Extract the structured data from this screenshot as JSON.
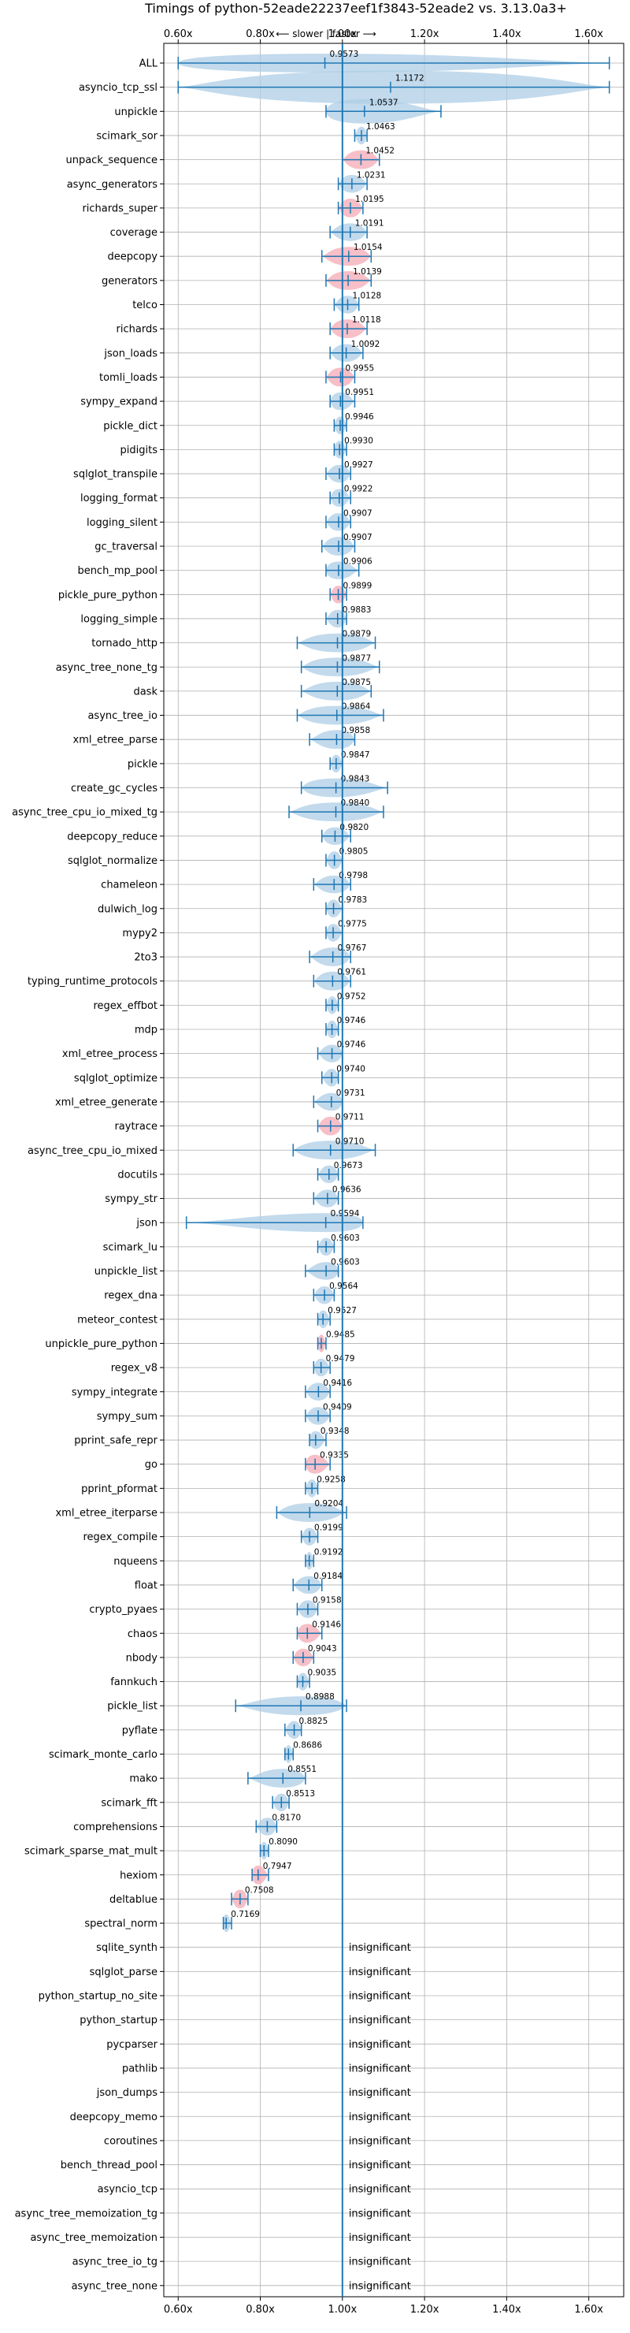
{
  "chart_data": {
    "type": "violin",
    "title": "Timings of python-52eade22237eef1f3843-52eade2 vs. 3.13.0a3+",
    "direction_label": "⟵ slower | faster ⟶",
    "xlim": [
      0.565,
      1.685
    ],
    "xticks": [
      "0.60x",
      "0.80x",
      "1.00x",
      "1.20x",
      "1.40x",
      "1.60x"
    ],
    "xtick_values": [
      0.6,
      0.8,
      1.0,
      1.2,
      1.4,
      1.6
    ],
    "reference_line": 1.0,
    "grid": true,
    "colors": {
      "violin_fill": "#aecde6",
      "whisker": "#1f77b4",
      "highlight": "#f4a9b4",
      "reference": "#1f77b4",
      "grid": "#b0b0b0"
    },
    "benchmarks": [
      {
        "name": "ALL",
        "median": 0.9573,
        "min": 0.6,
        "max": 1.65,
        "spread": 0.35,
        "insignificant": false,
        "highlight": false
      },
      {
        "name": "asyncio_tcp_ssl",
        "median": 1.1172,
        "min": 0.6,
        "max": 1.65,
        "spread": 1.0,
        "insignificant": false,
        "highlight": false
      },
      {
        "name": "unpickle",
        "median": 1.0537,
        "min": 0.96,
        "max": 1.24,
        "spread": 0.6,
        "insignificant": false,
        "highlight": false
      },
      {
        "name": "scimark_sor",
        "median": 1.0463,
        "min": 1.03,
        "max": 1.06,
        "spread": 0.3,
        "insignificant": false,
        "highlight": false
      },
      {
        "name": "unpack_sequence",
        "median": 1.0452,
        "min": 1.0,
        "max": 1.09,
        "spread": 0.35,
        "insignificant": false,
        "highlight": true
      },
      {
        "name": "async_generators",
        "median": 1.0231,
        "min": 0.99,
        "max": 1.06,
        "spread": 0.3,
        "insignificant": false,
        "highlight": false
      },
      {
        "name": "richards_super",
        "median": 1.0195,
        "min": 0.99,
        "max": 1.05,
        "spread": 0.35,
        "insignificant": false,
        "highlight": true
      },
      {
        "name": "coverage",
        "median": 1.0191,
        "min": 0.97,
        "max": 1.06,
        "spread": 0.3,
        "insignificant": false,
        "highlight": false
      },
      {
        "name": "deepcopy",
        "median": 1.0154,
        "min": 0.95,
        "max": 1.07,
        "spread": 0.35,
        "insignificant": false,
        "highlight": true
      },
      {
        "name": "generators",
        "median": 1.0139,
        "min": 0.96,
        "max": 1.07,
        "spread": 0.35,
        "insignificant": false,
        "highlight": true
      },
      {
        "name": "telco",
        "median": 1.0128,
        "min": 0.98,
        "max": 1.04,
        "spread": 0.3,
        "insignificant": false,
        "highlight": false
      },
      {
        "name": "richards",
        "median": 1.0118,
        "min": 0.97,
        "max": 1.06,
        "spread": 0.35,
        "insignificant": false,
        "highlight": true
      },
      {
        "name": "json_loads",
        "median": 1.0092,
        "min": 0.97,
        "max": 1.05,
        "spread": 0.3,
        "insignificant": false,
        "highlight": false
      },
      {
        "name": "tomli_loads",
        "median": 0.9955,
        "min": 0.96,
        "max": 1.03,
        "spread": 0.35,
        "insignificant": false,
        "highlight": true
      },
      {
        "name": "sympy_expand",
        "median": 0.9951,
        "min": 0.97,
        "max": 1.03,
        "spread": 0.3,
        "insignificant": false,
        "highlight": false
      },
      {
        "name": "pickle_dict",
        "median": 0.9946,
        "min": 0.98,
        "max": 1.01,
        "spread": 0.3,
        "insignificant": false,
        "highlight": false
      },
      {
        "name": "pidigits",
        "median": 0.993,
        "min": 0.98,
        "max": 1.01,
        "spread": 0.3,
        "insignificant": false,
        "highlight": false
      },
      {
        "name": "sqlglot_transpile",
        "median": 0.9927,
        "min": 0.96,
        "max": 1.02,
        "spread": 0.3,
        "insignificant": false,
        "highlight": false
      },
      {
        "name": "logging_format",
        "median": 0.9922,
        "min": 0.97,
        "max": 1.02,
        "spread": 0.3,
        "insignificant": false,
        "highlight": false
      },
      {
        "name": "logging_silent",
        "median": 0.9907,
        "min": 0.96,
        "max": 1.02,
        "spread": 0.3,
        "insignificant": false,
        "highlight": false
      },
      {
        "name": "gc_traversal",
        "median": 0.9907,
        "min": 0.95,
        "max": 1.03,
        "spread": 0.35,
        "insignificant": false,
        "highlight": false
      },
      {
        "name": "bench_mp_pool",
        "median": 0.9906,
        "min": 0.96,
        "max": 1.04,
        "spread": 0.3,
        "insignificant": false,
        "highlight": false
      },
      {
        "name": "pickle_pure_python",
        "median": 0.9899,
        "min": 0.97,
        "max": 1.01,
        "spread": 0.3,
        "insignificant": false,
        "highlight": true
      },
      {
        "name": "logging_simple",
        "median": 0.9883,
        "min": 0.96,
        "max": 1.01,
        "spread": 0.3,
        "insignificant": false,
        "highlight": false
      },
      {
        "name": "tornado_http",
        "median": 0.9879,
        "min": 0.89,
        "max": 1.08,
        "spread": 0.35,
        "insignificant": false,
        "highlight": false
      },
      {
        "name": "async_tree_none_tg",
        "median": 0.9877,
        "min": 0.9,
        "max": 1.09,
        "spread": 0.35,
        "insignificant": false,
        "highlight": false
      },
      {
        "name": "dask",
        "median": 0.9875,
        "min": 0.9,
        "max": 1.07,
        "spread": 0.35,
        "insignificant": false,
        "highlight": false
      },
      {
        "name": "async_tree_io",
        "median": 0.9864,
        "min": 0.89,
        "max": 1.1,
        "spread": 0.35,
        "insignificant": false,
        "highlight": false
      },
      {
        "name": "xml_etree_parse",
        "median": 0.9858,
        "min": 0.92,
        "max": 1.03,
        "spread": 0.35,
        "insignificant": false,
        "highlight": false
      },
      {
        "name": "pickle",
        "median": 0.9847,
        "min": 0.97,
        "max": 1.0,
        "spread": 0.3,
        "insignificant": false,
        "highlight": false
      },
      {
        "name": "create_gc_cycles",
        "median": 0.9843,
        "min": 0.9,
        "max": 1.11,
        "spread": 0.35,
        "insignificant": false,
        "highlight": false
      },
      {
        "name": "async_tree_cpu_io_mixed_tg",
        "median": 0.984,
        "min": 0.87,
        "max": 1.1,
        "spread": 0.35,
        "insignificant": false,
        "highlight": false
      },
      {
        "name": "deepcopy_reduce",
        "median": 0.982,
        "min": 0.95,
        "max": 1.02,
        "spread": 0.3,
        "insignificant": false,
        "highlight": false
      },
      {
        "name": "sqlglot_normalize",
        "median": 0.9805,
        "min": 0.96,
        "max": 1.0,
        "spread": 0.3,
        "insignificant": false,
        "highlight": false
      },
      {
        "name": "chameleon",
        "median": 0.9798,
        "min": 0.93,
        "max": 1.02,
        "spread": 0.3,
        "insignificant": false,
        "highlight": false
      },
      {
        "name": "dulwich_log",
        "median": 0.9783,
        "min": 0.96,
        "max": 1.0,
        "spread": 0.3,
        "insignificant": false,
        "highlight": false
      },
      {
        "name": "mypy2",
        "median": 0.9775,
        "min": 0.96,
        "max": 1.0,
        "spread": 0.3,
        "insignificant": false,
        "highlight": false
      },
      {
        "name": "2to3",
        "median": 0.9767,
        "min": 0.92,
        "max": 1.02,
        "spread": 0.35,
        "insignificant": false,
        "highlight": false
      },
      {
        "name": "typing_runtime_protocols",
        "median": 0.9761,
        "min": 0.93,
        "max": 1.02,
        "spread": 0.35,
        "insignificant": false,
        "highlight": false
      },
      {
        "name": "regex_effbot",
        "median": 0.9752,
        "min": 0.96,
        "max": 0.99,
        "spread": 0.3,
        "insignificant": false,
        "highlight": false
      },
      {
        "name": "mdp",
        "median": 0.9746,
        "min": 0.96,
        "max": 0.99,
        "spread": 0.3,
        "insignificant": false,
        "highlight": false
      },
      {
        "name": "xml_etree_process",
        "median": 0.9746,
        "min": 0.94,
        "max": 1.0,
        "spread": 0.3,
        "insignificant": false,
        "highlight": false
      },
      {
        "name": "sqlglot_optimize",
        "median": 0.974,
        "min": 0.95,
        "max": 0.99,
        "spread": 0.3,
        "insignificant": false,
        "highlight": false
      },
      {
        "name": "xml_etree_generate",
        "median": 0.9731,
        "min": 0.93,
        "max": 1.0,
        "spread": 0.3,
        "insignificant": false,
        "highlight": false
      },
      {
        "name": "raytrace",
        "median": 0.9711,
        "min": 0.94,
        "max": 1.0,
        "spread": 0.35,
        "insignificant": false,
        "highlight": true
      },
      {
        "name": "async_tree_cpu_io_mixed",
        "median": 0.971,
        "min": 0.88,
        "max": 1.08,
        "spread": 0.35,
        "insignificant": false,
        "highlight": false
      },
      {
        "name": "docutils",
        "median": 0.9673,
        "min": 0.94,
        "max": 0.99,
        "spread": 0.3,
        "insignificant": false,
        "highlight": false
      },
      {
        "name": "sympy_str",
        "median": 0.9636,
        "min": 0.93,
        "max": 0.99,
        "spread": 0.3,
        "insignificant": false,
        "highlight": false
      },
      {
        "name": "json",
        "median": 0.9594,
        "min": 0.62,
        "max": 1.05,
        "spread": 0.35,
        "insignificant": false,
        "highlight": false
      },
      {
        "name": "scimark_lu",
        "median": 0.9603,
        "min": 0.94,
        "max": 0.98,
        "spread": 0.3,
        "insignificant": false,
        "highlight": false
      },
      {
        "name": "unpickle_list",
        "median": 0.9603,
        "min": 0.91,
        "max": 0.99,
        "spread": 0.3,
        "insignificant": false,
        "highlight": false
      },
      {
        "name": "regex_dna",
        "median": 0.9564,
        "min": 0.93,
        "max": 0.98,
        "spread": 0.3,
        "insignificant": false,
        "highlight": false
      },
      {
        "name": "meteor_contest",
        "median": 0.9527,
        "min": 0.94,
        "max": 0.97,
        "spread": 0.3,
        "insignificant": false,
        "highlight": false
      },
      {
        "name": "unpickle_pure_python",
        "median": 0.9485,
        "min": 0.94,
        "max": 0.96,
        "spread": 0.3,
        "insignificant": false,
        "highlight": true
      },
      {
        "name": "regex_v8",
        "median": 0.9479,
        "min": 0.93,
        "max": 0.97,
        "spread": 0.3,
        "insignificant": false,
        "highlight": false
      },
      {
        "name": "sympy_integrate",
        "median": 0.9416,
        "min": 0.91,
        "max": 0.97,
        "spread": 0.3,
        "insignificant": false,
        "highlight": false
      },
      {
        "name": "sympy_sum",
        "median": 0.9409,
        "min": 0.91,
        "max": 0.97,
        "spread": 0.3,
        "insignificant": false,
        "highlight": false
      },
      {
        "name": "pprint_safe_repr",
        "median": 0.9348,
        "min": 0.92,
        "max": 0.96,
        "spread": 0.3,
        "insignificant": false,
        "highlight": false
      },
      {
        "name": "go",
        "median": 0.9335,
        "min": 0.91,
        "max": 0.97,
        "spread": 0.35,
        "insignificant": false,
        "highlight": true
      },
      {
        "name": "pprint_pformat",
        "median": 0.9258,
        "min": 0.91,
        "max": 0.94,
        "spread": 0.3,
        "insignificant": false,
        "highlight": false
      },
      {
        "name": "xml_etree_iterparse",
        "median": 0.9204,
        "min": 0.84,
        "max": 1.01,
        "spread": 0.35,
        "insignificant": false,
        "highlight": false
      },
      {
        "name": "regex_compile",
        "median": 0.9199,
        "min": 0.9,
        "max": 0.94,
        "spread": 0.3,
        "insignificant": false,
        "highlight": false
      },
      {
        "name": "nqueens",
        "median": 0.9192,
        "min": 0.91,
        "max": 0.93,
        "spread": 0.3,
        "insignificant": false,
        "highlight": false
      },
      {
        "name": "float",
        "median": 0.9184,
        "min": 0.88,
        "max": 0.95,
        "spread": 0.3,
        "insignificant": false,
        "highlight": false
      },
      {
        "name": "crypto_pyaes",
        "median": 0.9158,
        "min": 0.89,
        "max": 0.94,
        "spread": 0.3,
        "insignificant": false,
        "highlight": false
      },
      {
        "name": "chaos",
        "median": 0.9146,
        "min": 0.89,
        "max": 0.95,
        "spread": 0.35,
        "insignificant": false,
        "highlight": true
      },
      {
        "name": "nbody",
        "median": 0.9043,
        "min": 0.88,
        "max": 0.93,
        "spread": 0.3,
        "insignificant": false,
        "highlight": true
      },
      {
        "name": "fannkuch",
        "median": 0.9035,
        "min": 0.89,
        "max": 0.92,
        "spread": 0.3,
        "insignificant": false,
        "highlight": false
      },
      {
        "name": "pickle_list",
        "median": 0.8988,
        "min": 0.74,
        "max": 1.01,
        "spread": 0.35,
        "insignificant": false,
        "highlight": false
      },
      {
        "name": "pyflate",
        "median": 0.8825,
        "min": 0.86,
        "max": 0.9,
        "spread": 0.3,
        "insignificant": false,
        "highlight": false
      },
      {
        "name": "scimark_monte_carlo",
        "median": 0.8686,
        "min": 0.86,
        "max": 0.88,
        "spread": 0.3,
        "insignificant": false,
        "highlight": false
      },
      {
        "name": "mako",
        "median": 0.8551,
        "min": 0.77,
        "max": 0.91,
        "spread": 0.35,
        "insignificant": false,
        "highlight": false
      },
      {
        "name": "scimark_fft",
        "median": 0.8513,
        "min": 0.83,
        "max": 0.87,
        "spread": 0.3,
        "insignificant": false,
        "highlight": false
      },
      {
        "name": "comprehensions",
        "median": 0.817,
        "min": 0.79,
        "max": 0.84,
        "spread": 0.3,
        "insignificant": false,
        "highlight": false
      },
      {
        "name": "scimark_sparse_mat_mult",
        "median": 0.809,
        "min": 0.8,
        "max": 0.82,
        "spread": 0.3,
        "insignificant": false,
        "highlight": false
      },
      {
        "name": "hexiom",
        "median": 0.7947,
        "min": 0.78,
        "max": 0.82,
        "spread": 0.35,
        "insignificant": false,
        "highlight": true
      },
      {
        "name": "deltablue",
        "median": 0.7508,
        "min": 0.73,
        "max": 0.77,
        "spread": 0.35,
        "insignificant": false,
        "highlight": true
      },
      {
        "name": "spectral_norm",
        "median": 0.7169,
        "min": 0.71,
        "max": 0.73,
        "spread": 0.3,
        "insignificant": false,
        "highlight": false
      },
      {
        "name": "sqlite_synth",
        "insignificant": true
      },
      {
        "name": "sqlglot_parse",
        "insignificant": true
      },
      {
        "name": "python_startup_no_site",
        "insignificant": true
      },
      {
        "name": "python_startup",
        "insignificant": true
      },
      {
        "name": "pycparser",
        "insignificant": true
      },
      {
        "name": "pathlib",
        "insignificant": true
      },
      {
        "name": "json_dumps",
        "insignificant": true
      },
      {
        "name": "deepcopy_memo",
        "insignificant": true
      },
      {
        "name": "coroutines",
        "insignificant": true
      },
      {
        "name": "bench_thread_pool",
        "insignificant": true
      },
      {
        "name": "asyncio_tcp",
        "insignificant": true
      },
      {
        "name": "async_tree_memoization_tg",
        "insignificant": true
      },
      {
        "name": "async_tree_memoization",
        "insignificant": true
      },
      {
        "name": "async_tree_io_tg",
        "insignificant": true
      },
      {
        "name": "async_tree_none",
        "insignificant": true
      }
    ],
    "insignificant_label": "insignificant"
  }
}
